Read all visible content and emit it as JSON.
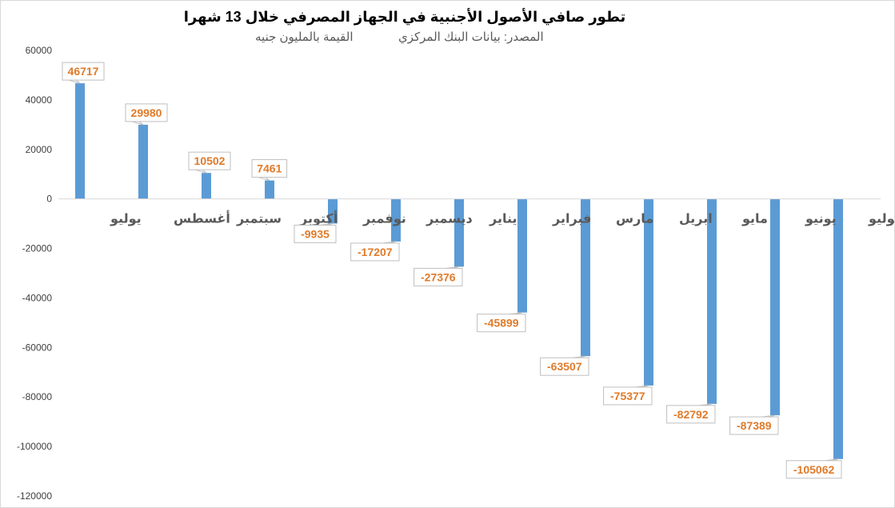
{
  "chart_data": {
    "type": "bar",
    "title": "تطور صافي الأصول الأجنبية في الجهاز المصرفي خلال 13 شهرا",
    "subtitle_source": "المصدر: بيانات البنك المركزي",
    "subtitle_unit": "القيمة بالمليون جنيه",
    "categories": [
      "يوليو",
      "أغسطس",
      "سبتمبر",
      "أكتوبر",
      "نوفمبر",
      "ديسمبر",
      "يناير",
      "فبراير",
      "مارس",
      "ابريل",
      "مايو",
      "يونيو",
      "يوليو"
    ],
    "values": [
      46717,
      29980,
      10502,
      7461,
      -9935,
      -17207,
      -27376,
      -45899,
      -63507,
      -75377,
      -82792,
      -87389,
      -105062
    ],
    "data_labels": [
      "46717",
      "29980",
      "10502",
      "7461",
      "-9935",
      "-17207",
      "-27376",
      "-45899",
      "-63507",
      "-75377",
      "-82792",
      "-87389",
      "-105062"
    ],
    "yticks": [
      60000,
      40000,
      20000,
      0,
      -20000,
      -40000,
      -60000,
      -80000,
      -100000,
      -120000
    ],
    "ytick_labels": [
      "60000",
      "40000",
      "20000",
      "0",
      "-20000",
      "-40000",
      "-60000",
      "-80000",
      "-100000",
      "-120000"
    ],
    "ylim": [
      -120000,
      60000
    ],
    "xlabel": "",
    "ylabel": "",
    "grid": false,
    "legend": "none",
    "colors": {
      "bar": "#5b9bd5",
      "label": "#e07b2a",
      "category": "#595959",
      "axis": "#d9d9d9"
    }
  }
}
